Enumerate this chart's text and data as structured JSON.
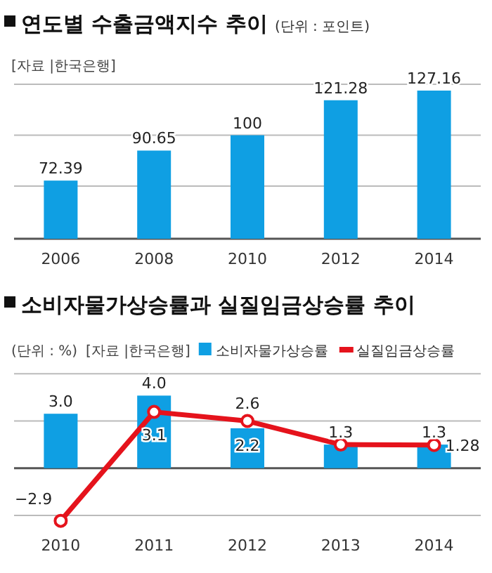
{
  "chart_data": [
    {
      "type": "bar",
      "title": "연도별 수출금액지수 추이",
      "subtitle": "(단위 : 포인트)",
      "annotations": [
        "[자료 |한국은행]"
      ],
      "categories": [
        "2006",
        "2008",
        "2010",
        "2012",
        "2014"
      ],
      "values": [
        72.39,
        90.65,
        100,
        121.28,
        127.16
      ],
      "color": "#0f9fe3",
      "ylim": [
        37,
        131
      ],
      "ref_lines": [
        {
          "axis": "y",
          "value": 69,
          "color": "#bbbbbb"
        },
        {
          "axis": "y",
          "value": 100,
          "color": "#bbbbbb"
        },
        {
          "axis": "y",
          "value": 131,
          "color": "#bbbbbb"
        }
      ],
      "tick_labels": "x",
      "data_labels": true
    },
    {
      "type": "bar",
      "title": "소비자물가상승률과 실질임금상승률 추이",
      "annotations": [
        "(단위 : %)",
        "[자료 |한국은행]"
      ],
      "categories": [
        "2010",
        "2011",
        "2012",
        "2013",
        "2014"
      ],
      "series": [
        {
          "name": "소비자물가상승률",
          "type": "bar",
          "color": "#0f9fe3",
          "values": [
            3.0,
            4.0,
            2.2,
            1.3,
            1.3
          ],
          "value_labels": [
            "3.0",
            "4.0",
            "2.2",
            "1.3",
            "1.3"
          ]
        },
        {
          "name": "실질임금상승률",
          "type": "line",
          "color": "#e5131c",
          "values": [
            -2.9,
            3.1,
            2.6,
            1.3,
            1.28
          ],
          "value_labels": [
            "−2.9",
            "3.1",
            "2.6",
            null,
            "1.28"
          ]
        }
      ],
      "marker": "circle",
      "ref_lines": [
        {
          "axis": "y",
          "value": -2.6,
          "color": "#bbbbbb"
        },
        {
          "axis": "y",
          "value": 2.6,
          "color": "#bbbbbb"
        },
        {
          "axis": "y",
          "value": 5.2,
          "color": "#bbbbbb"
        }
      ],
      "tick_labels": "x",
      "legend": "top"
    }
  ]
}
